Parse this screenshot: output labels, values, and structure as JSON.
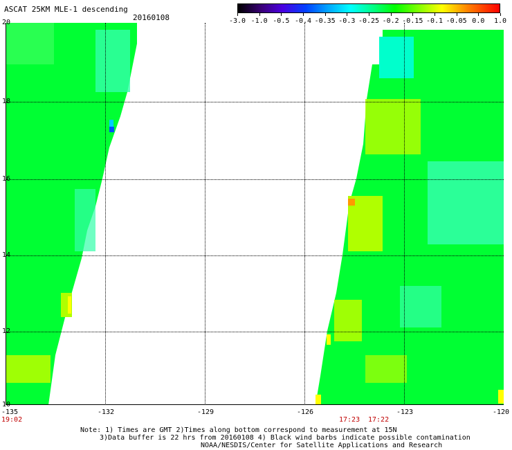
{
  "header": {
    "title": "ASCAT 25KM MLE-1 descending",
    "date": "20160108"
  },
  "colorbar": {
    "ticks": [
      "-3.0",
      "-1.0",
      "-0.5",
      "-0.4",
      "-0.35",
      "-0.3",
      "-0.25",
      "-0.2",
      "-0.15",
      "-0.1",
      "-0.05",
      "0.0",
      "1.0"
    ],
    "colors": [
      "#000000",
      "#3a0078",
      "#4a00e0",
      "#0040ff",
      "#00a0ff",
      "#00ffff",
      "#00ff80",
      "#00ff00",
      "#80ff00",
      "#ffff00",
      "#ff8000",
      "#ff0000"
    ]
  },
  "map": {
    "y_labels": [
      "20",
      "18",
      "16",
      "14",
      "12",
      "10"
    ],
    "x_labels": [
      "-135",
      "-132",
      "-129",
      "-126",
      "-123",
      "-120"
    ],
    "times": [
      "19:02",
      "17:23",
      "17:22"
    ],
    "swath_colors": {
      "green": "#00ff00",
      "light_green": "#33ff66",
      "cyan": "#00ffcc",
      "yellow_green": "#b0ff00",
      "yellow": "#ffff00",
      "orange": "#ff8000",
      "blue": "#0050ff"
    }
  },
  "notes": {
    "line1": "Note: 1) Times are GMT 2)Times along bottom correspond to measurement at 15N",
    "line2": "3)Data buffer is 22 hrs from 20160108 4) Black wind barbs indicate possible contamination",
    "line3": "NOAA/NESDIS/Center for Satellite Applications and Research"
  }
}
